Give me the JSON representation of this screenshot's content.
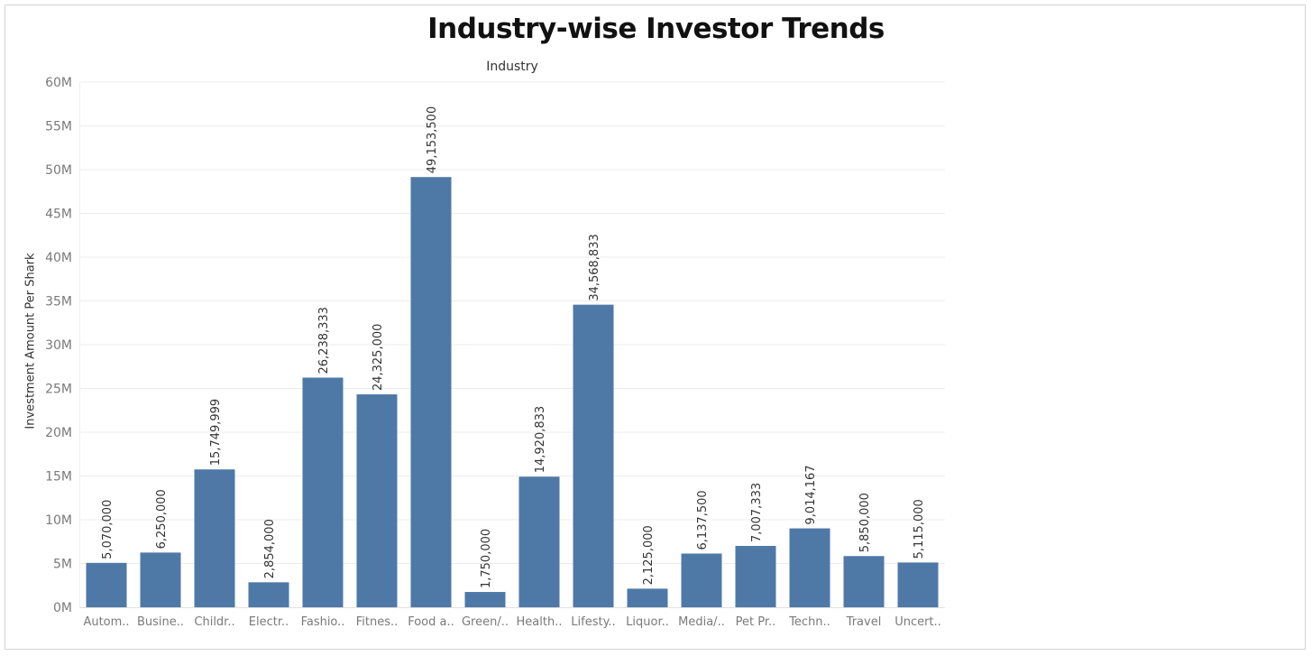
{
  "chart_data": {
    "type": "bar",
    "title": "Industry-wise Investor Trends",
    "column_header": "Industry",
    "ylabel": "Investment Amount Per Shark",
    "xlabel": "",
    "ylim": [
      0,
      60000000
    ],
    "yticks": [
      {
        "value": 0,
        "label": "0M"
      },
      {
        "value": 5000000,
        "label": "5M"
      },
      {
        "value": 10000000,
        "label": "10M"
      },
      {
        "value": 15000000,
        "label": "15M"
      },
      {
        "value": 20000000,
        "label": "20M"
      },
      {
        "value": 25000000,
        "label": "25M"
      },
      {
        "value": 30000000,
        "label": "30M"
      },
      {
        "value": 35000000,
        "label": "35M"
      },
      {
        "value": 40000000,
        "label": "40M"
      },
      {
        "value": 45000000,
        "label": "45M"
      },
      {
        "value": 50000000,
        "label": "50M"
      },
      {
        "value": 55000000,
        "label": "55M"
      },
      {
        "value": 60000000,
        "label": "60M"
      }
    ],
    "grid": true,
    "bar_color": "#4e79a7",
    "categories": [
      "Autom..",
      "Busine..",
      "Childr..",
      "Electr..",
      "Fashio..",
      "Fitnes..",
      "Food a..",
      "Green/..",
      "Health..",
      "Lifesty..",
      "Liquor..",
      "Media/..",
      "Pet Pr..",
      "Techn..",
      "Travel",
      "Uncert.."
    ],
    "values": [
      5070000,
      6250000,
      15749999,
      2854000,
      26238333,
      24325000,
      49153500,
      1750000,
      14920833,
      34568833,
      2125000,
      6137500,
      7007333,
      9014167,
      5850000,
      5115000
    ],
    "value_labels": [
      "5,070,000",
      "6,250,000",
      "15,749,999",
      "2,854,000",
      "26,238,333",
      "24,325,000",
      "49,153,500",
      "1,750,000",
      "14,920,833",
      "34,568,833",
      "2,125,000",
      "6,137,500",
      "7,007,333",
      "9,014,167",
      "5,850,000",
      "5,115,000"
    ]
  }
}
